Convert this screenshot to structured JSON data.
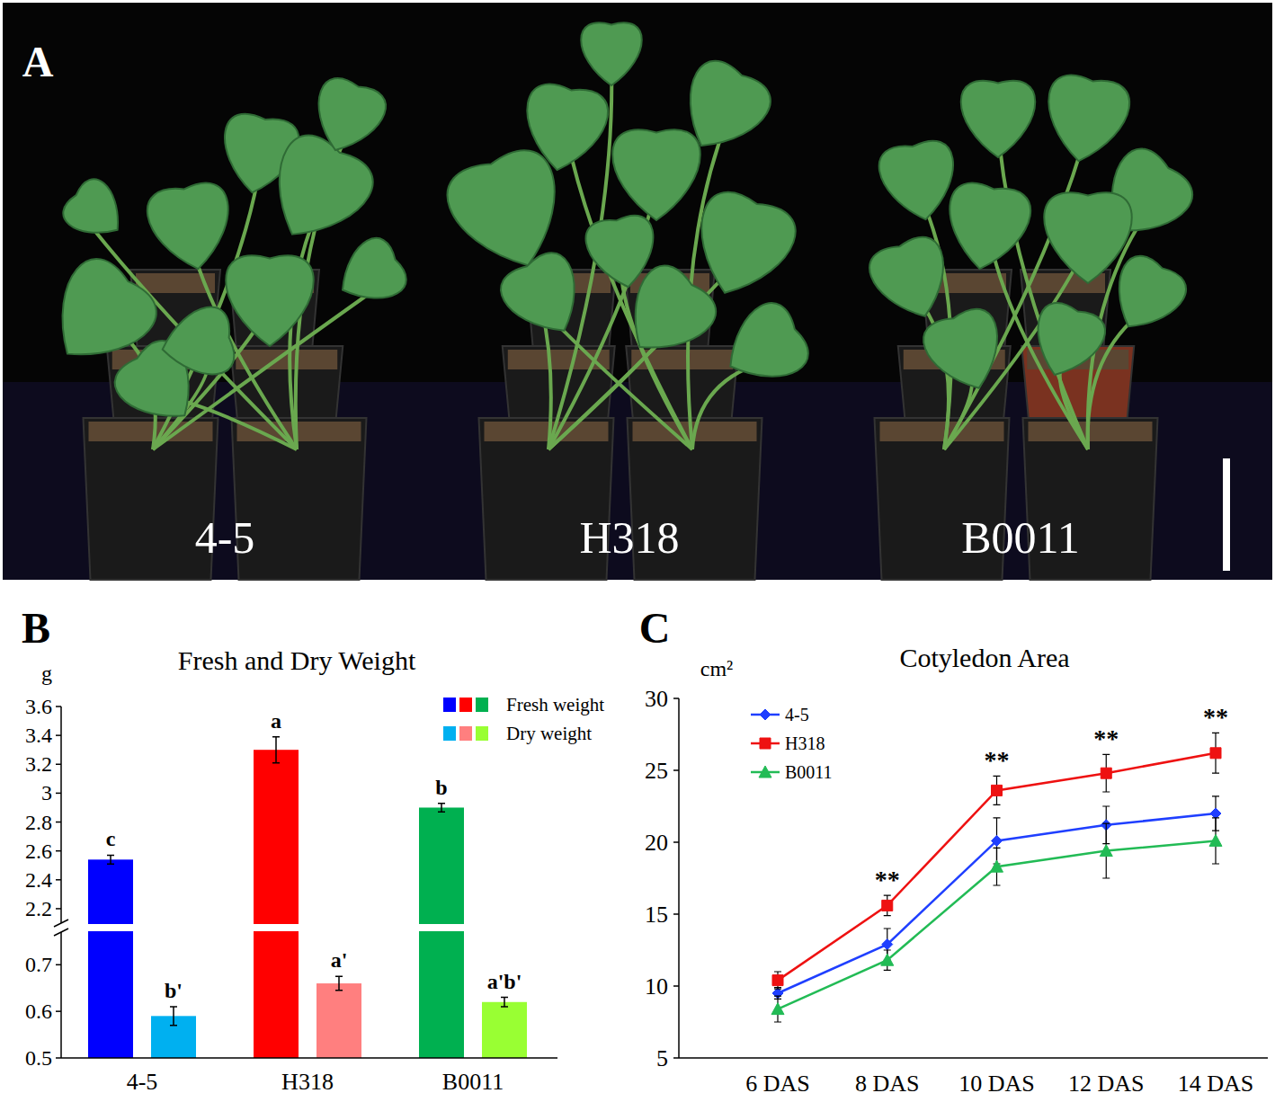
{
  "photo": {
    "panel": "A",
    "labels": [
      "4-5",
      "H318",
      "B0011"
    ]
  },
  "chart_data": [
    {
      "panel": "B",
      "type": "bar",
      "title": "Fresh and Dry Weight",
      "y_label": "g",
      "categories": [
        "4-5",
        "H318",
        "B0011"
      ],
      "series": [
        {
          "name": "Fresh weight",
          "colors": [
            "#0000ff",
            "#ff0000",
            "#00b050"
          ],
          "values": [
            2.54,
            3.3,
            2.9
          ],
          "errors": [
            0.03,
            0.09,
            0.03
          ],
          "significance": [
            "c",
            "a",
            "b"
          ]
        },
        {
          "name": "Dry weight",
          "colors": [
            "#00b0f0",
            "#ff7f7f",
            "#99ff33"
          ],
          "values": [
            0.59,
            0.66,
            0.62
          ],
          "errors": [
            0.02,
            0.015,
            0.01
          ],
          "significance": [
            "b'",
            "a'",
            "a'b'"
          ]
        }
      ],
      "ylim": [
        0.5,
        3.6
      ],
      "y_break": [
        0.77,
        2.1
      ],
      "yticks": [
        0.5,
        0.6,
        0.7,
        2.2,
        2.4,
        2.6,
        2.8,
        3,
        3.2,
        3.4,
        3.6
      ],
      "legend": "upper right",
      "grid": false
    },
    {
      "panel": "C",
      "type": "line",
      "title": "Cotyledon Area",
      "y_label": "cm²",
      "categories": [
        "6 DAS",
        "8 DAS",
        "10 DAS",
        "12 DAS",
        "14 DAS"
      ],
      "series": [
        {
          "name": "4-5",
          "color": "#1f3fff",
          "marker": "diamond",
          "values": [
            9.5,
            12.9,
            20.1,
            21.2,
            22.0
          ],
          "errors": [
            0.4,
            1.1,
            1.6,
            1.3,
            1.2
          ]
        },
        {
          "name": "H318",
          "color": "#ee1111",
          "marker": "square",
          "values": [
            10.4,
            15.6,
            23.6,
            24.8,
            26.2
          ],
          "errors": [
            0.6,
            0.7,
            1.0,
            1.3,
            1.4
          ]
        },
        {
          "name": "B0011",
          "color": "#22bb55",
          "marker": "triangle",
          "values": [
            8.4,
            11.8,
            18.3,
            19.4,
            20.1
          ],
          "errors": [
            0.9,
            0.7,
            1.3,
            1.9,
            1.6
          ]
        }
      ],
      "significance": [
        null,
        "**",
        "**",
        "**",
        "**"
      ],
      "ylim": [
        5,
        30
      ],
      "yticks": [
        5,
        10,
        15,
        20,
        25,
        30
      ],
      "legend": "upper left",
      "grid": false
    }
  ]
}
